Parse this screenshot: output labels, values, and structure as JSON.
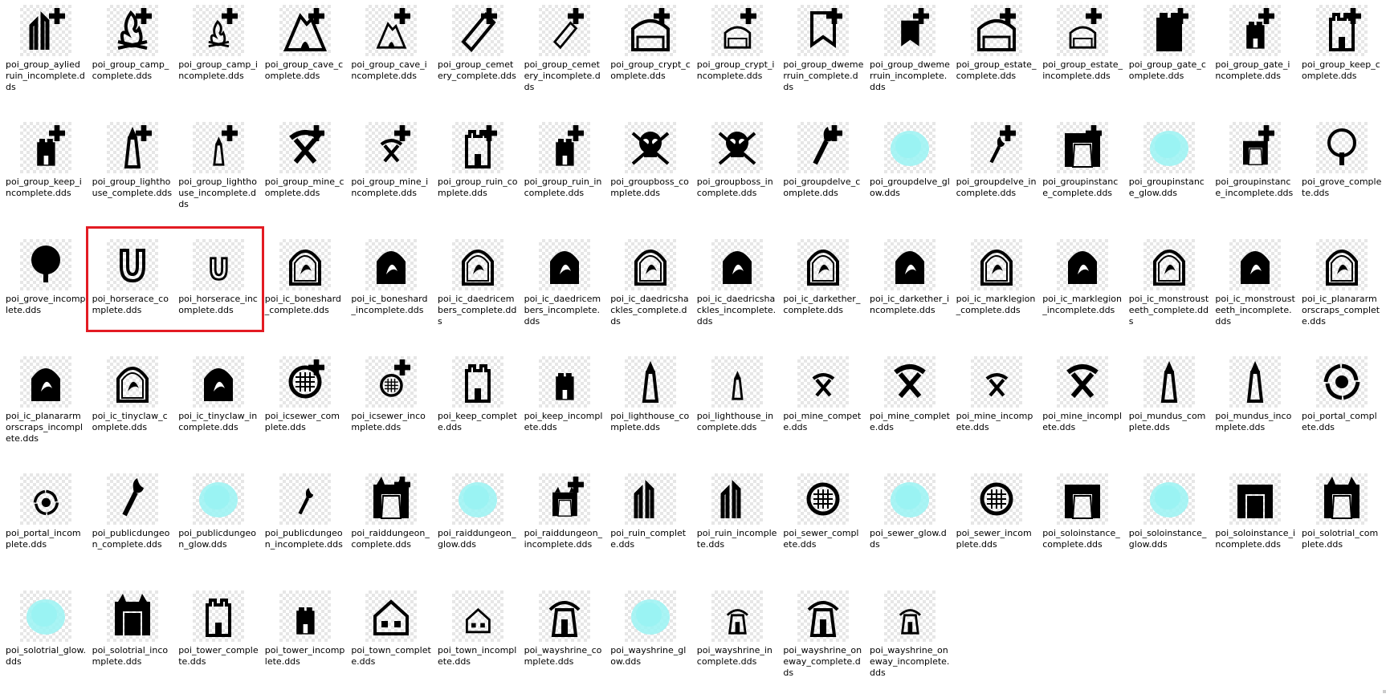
{
  "window": {
    "view": "large-icons"
  },
  "colors": {
    "glyph": "#000000",
    "glow": "#9af3f3",
    "selection": "#e31b23"
  },
  "selection": {
    "items": [
      "poi_horserace_complete.dds",
      "poi_horserace_incomplete.dds"
    ]
  },
  "files": [
    {
      "name": "poi_group_aylied ruin_incomplete.dds",
      "icon": "ruin-plus-icon"
    },
    {
      "name": "poi_group_camp_complete.dds",
      "icon": "campfire-plus-icon"
    },
    {
      "name": "poi_group_camp_incomplete.dds",
      "icon": "campfire-small-plus-icon"
    },
    {
      "name": "poi_group_cave_complete.dds",
      "icon": "cave-plus-icon"
    },
    {
      "name": "poi_group_cave_incomplete.dds",
      "icon": "cave-small-plus-icon"
    },
    {
      "name": "poi_group_cemetery_complete.dds",
      "icon": "coffin-plus-icon"
    },
    {
      "name": "poi_group_cemetery_incomplete.dds",
      "icon": "coffin-small-plus-icon"
    },
    {
      "name": "poi_group_crypt_complete.dds",
      "icon": "crypt-plus-icon"
    },
    {
      "name": "poi_group_crypt_incomplete.dds",
      "icon": "crypt-small-plus-icon"
    },
    {
      "name": "poi_group_dwemerruin_complete.dds",
      "icon": "dwemer-banner-plus-icon"
    },
    {
      "name": "poi_group_dwemerruin_incomplete.dds",
      "icon": "dwemer-banner-small-plus-icon"
    },
    {
      "name": "poi_group_estate_complete.dds",
      "icon": "estate-plus-icon"
    },
    {
      "name": "poi_group_estate_incomplete.dds",
      "icon": "estate-small-plus-icon"
    },
    {
      "name": "poi_group_gate_complete.dds",
      "icon": "gate-tower-plus-icon"
    },
    {
      "name": "poi_group_gate_incomplete.dds",
      "icon": "gate-tower-small-plus-icon"
    },
    {
      "name": "poi_group_keep_complete.dds",
      "icon": "keep-plus-icon"
    },
    {
      "name": "poi_group_keep_incomplete.dds",
      "icon": "keep-small-plus-icon"
    },
    {
      "name": "poi_group_lighthouse_complete.dds",
      "icon": "lighthouse-plus-icon"
    },
    {
      "name": "poi_group_lighthouse_incomplete.dds",
      "icon": "lighthouse-small-plus-icon"
    },
    {
      "name": "poi_group_mine_complete.dds",
      "icon": "pickaxe-plus-icon"
    },
    {
      "name": "poi_group_mine_incomplete.dds",
      "icon": "pickaxe-small-plus-icon"
    },
    {
      "name": "poi_group_ruin_complete.dds",
      "icon": "broken-tower-plus-icon"
    },
    {
      "name": "poi_group_ruin_incomplete.dds",
      "icon": "broken-tower-small-plus-icon"
    },
    {
      "name": "poi_groupboss_complete.dds",
      "icon": "skull-crossbones-icon"
    },
    {
      "name": "poi_groupboss_incomplete.dds",
      "icon": "skull-swords-icon"
    },
    {
      "name": "poi_groupdelve_complete.dds",
      "icon": "torch-plus-icon"
    },
    {
      "name": "poi_groupdelve_glow.dds",
      "icon": "glow-icon"
    },
    {
      "name": "poi_groupdelve_incomplete.dds",
      "icon": "torch-small-plus-icon"
    },
    {
      "name": "poi_groupinstance_complete.dds",
      "icon": "portal-arch-plus-icon"
    },
    {
      "name": "poi_groupinstance_glow.dds",
      "icon": "glow-icon"
    },
    {
      "name": "poi_groupinstance_incomplete.dds",
      "icon": "portal-arch-small-plus-icon"
    },
    {
      "name": "poi_grove_complete.dds",
      "icon": "tree-icon"
    },
    {
      "name": "poi_grove_incomplete.dds",
      "icon": "tree-solid-icon"
    },
    {
      "name": "poi_horserace_complete.dds",
      "icon": "horseshoe-icon"
    },
    {
      "name": "poi_horserace_incomplete.dds",
      "icon": "horseshoe-small-icon"
    },
    {
      "name": "poi_ic_boneshard_complete.dds",
      "icon": "ic-arch-bone-icon"
    },
    {
      "name": "poi_ic_boneshard_incomplete.dds",
      "icon": "ic-arch-bone-solid-icon"
    },
    {
      "name": "poi_ic_daedricembers_complete.dds",
      "icon": "ic-arch-ember-icon"
    },
    {
      "name": "poi_ic_daedricembers_incomplete.dds",
      "icon": "ic-arch-ember-solid-icon"
    },
    {
      "name": "poi_ic_daedricshackles_complete.dds",
      "icon": "ic-arch-shackle-icon"
    },
    {
      "name": "poi_ic_daedricshackles_incomplete.dds",
      "icon": "ic-arch-shackle-solid-icon"
    },
    {
      "name": "poi_ic_darkether_complete.dds",
      "icon": "ic-arch-swirl-icon"
    },
    {
      "name": "poi_ic_darkether_incomplete.dds",
      "icon": "ic-arch-swirl-solid-icon"
    },
    {
      "name": "poi_ic_marklegion_complete.dds",
      "icon": "ic-arch-gem-icon"
    },
    {
      "name": "poi_ic_marklegion_incomplete.dds",
      "icon": "ic-arch-gem-solid-icon"
    },
    {
      "name": "poi_ic_monstrousteeth_complete.dds",
      "icon": "ic-arch-teeth-icon"
    },
    {
      "name": "poi_ic_monstrousteeth_incomplete.dds",
      "icon": "ic-arch-teeth-solid-icon"
    },
    {
      "name": "poi_ic_planararmorscraps_complete.dds",
      "icon": "ic-arch-armor-icon"
    },
    {
      "name": "poi_ic_planararmorscraps_incomplete.dds",
      "icon": "ic-arch-armor-solid-icon"
    },
    {
      "name": "poi_ic_tinyclaw_complete.dds",
      "icon": "ic-arch-claw-icon"
    },
    {
      "name": "poi_ic_tinyclaw_incomplete.dds",
      "icon": "ic-arch-claw-solid-icon"
    },
    {
      "name": "poi_icsewer_complete.dds",
      "icon": "sewer-grate-plus-icon"
    },
    {
      "name": "poi_icsewer_incomplete.dds",
      "icon": "sewer-grate-small-plus-icon"
    },
    {
      "name": "poi_keep_complete.dds",
      "icon": "keep-tower-icon"
    },
    {
      "name": "poi_keep_incomplete.dds",
      "icon": "keep-tower-small-icon"
    },
    {
      "name": "poi_lighthouse_complete.dds",
      "icon": "lighthouse-icon"
    },
    {
      "name": "poi_lighthouse_incomplete.dds",
      "icon": "lighthouse-small-icon"
    },
    {
      "name": "poi_mine_compete.dds",
      "icon": "pickaxe-tiny-icon"
    },
    {
      "name": "poi_mine_complete.dds",
      "icon": "pickaxe-outline-icon"
    },
    {
      "name": "poi_mine_incompete.dds",
      "icon": "pickaxe-tiny-solid-icon"
    },
    {
      "name": "poi_mine_incomplete.dds",
      "icon": "pickaxe-solid-icon"
    },
    {
      "name": "poi_mundus_complete.dds",
      "icon": "mundus-stone-icon"
    },
    {
      "name": "poi_mundus_incomplete.dds",
      "icon": "mundus-stone-solid-icon"
    },
    {
      "name": "poi_portal_complete.dds",
      "icon": "portal-swirl-icon"
    },
    {
      "name": "poi_portal_incomplete.dds",
      "icon": "portal-swirl-small-icon"
    },
    {
      "name": "poi_publicdungeon_complete.dds",
      "icon": "crossed-torches-icon"
    },
    {
      "name": "poi_publicdungeon_glow.dds",
      "icon": "glow-icon"
    },
    {
      "name": "poi_publicdungeon_incomplete.dds",
      "icon": "crossed-torches-small-icon"
    },
    {
      "name": "poi_raiddungeon_complete.dds",
      "icon": "demon-gate-plus-icon"
    },
    {
      "name": "poi_raiddungeon_glow.dds",
      "icon": "glow-icon"
    },
    {
      "name": "poi_raiddungeon_incomplete.dds",
      "icon": "demon-gate-small-plus-icon"
    },
    {
      "name": "poi_ruin_complete.dds",
      "icon": "ruin-column-icon"
    },
    {
      "name": "poi_ruin_incomplete.dds",
      "icon": "ruin-column-solid-icon"
    },
    {
      "name": "poi_sewer_complete.dds",
      "icon": "sewer-gear-icon"
    },
    {
      "name": "poi_sewer_glow.dds",
      "icon": "glow-icon"
    },
    {
      "name": "poi_sewer_incomplete.dds",
      "icon": "sewer-grate-icon"
    },
    {
      "name": "poi_soloinstance_complete.dds",
      "icon": "portal-arch-icon"
    },
    {
      "name": "poi_soloinstance_glow.dds",
      "icon": "glow-icon"
    },
    {
      "name": "poi_soloinstance_incomplete.dds",
      "icon": "portal-arch-solid-icon"
    },
    {
      "name": "poi_solotrial_complete.dds",
      "icon": "demon-gate-icon"
    },
    {
      "name": "poi_solotrial_glow.dds",
      "icon": "glow-icon"
    },
    {
      "name": "poi_solotrial_incomplete.dds",
      "icon": "demon-gate-solid-icon"
    },
    {
      "name": "poi_tower_complete.dds",
      "icon": "tower-icon"
    },
    {
      "name": "poi_tower_incomplete.dds",
      "icon": "tower-small-icon"
    },
    {
      "name": "poi_town_complete.dds",
      "icon": "house-icon"
    },
    {
      "name": "poi_town_incomplete.dds",
      "icon": "house-small-icon"
    },
    {
      "name": "poi_wayshrine_complete.dds",
      "icon": "wayshrine-icon"
    },
    {
      "name": "poi_wayshrine_glow.dds",
      "icon": "glow-icon"
    },
    {
      "name": "poi_wayshrine_incomplete.dds",
      "icon": "wayshrine-small-icon"
    },
    {
      "name": "poi_wayshrine_oneway_complete.dds",
      "icon": "wayshrine-oneway-icon"
    },
    {
      "name": "poi_wayshrine_oneway_incomplete.dds",
      "icon": "wayshrine-oneway-small-icon"
    }
  ]
}
